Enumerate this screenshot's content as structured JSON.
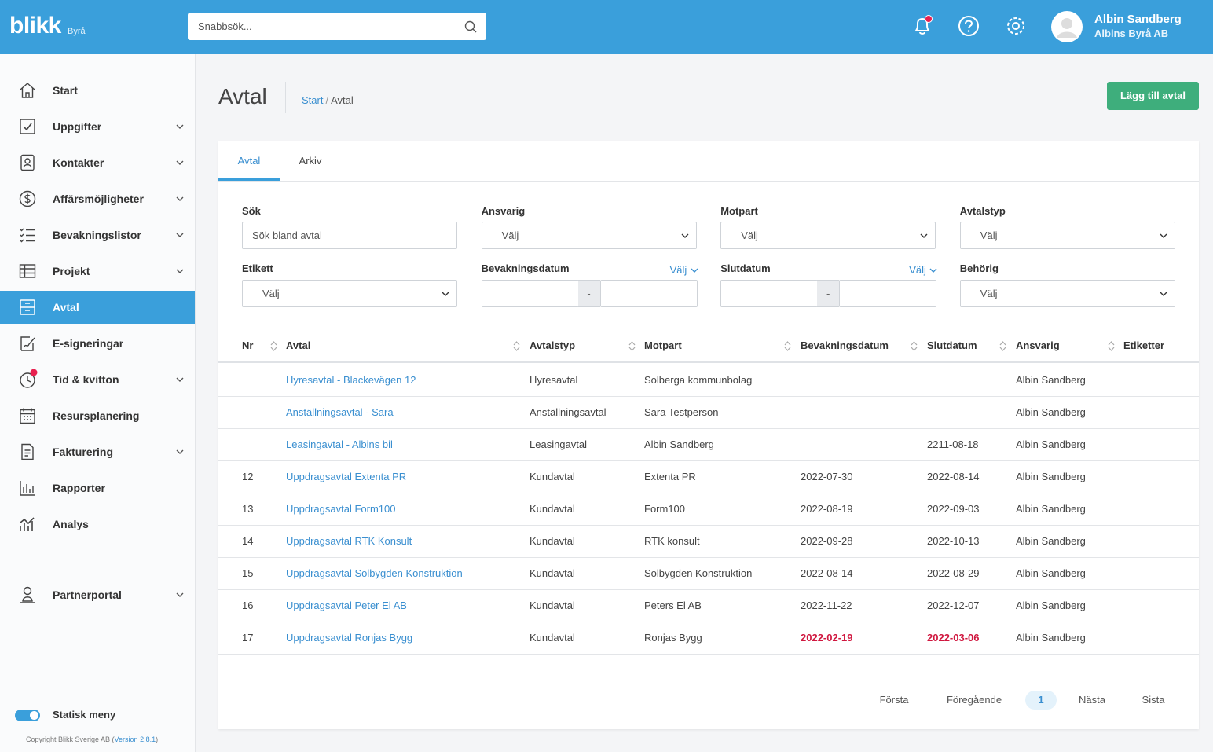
{
  "header": {
    "logo": "blikk",
    "logo_sub": "Byrå",
    "search_placeholder": "Snabbsök...",
    "user_name": "Albin Sandberg",
    "user_company": "Albins Byrå AB",
    "notification_badge": true
  },
  "sidebar": {
    "items": [
      {
        "label": "Start",
        "expandable": false
      },
      {
        "label": "Uppgifter",
        "expandable": true
      },
      {
        "label": "Kontakter",
        "expandable": true
      },
      {
        "label": "Affärsmöjligheter",
        "expandable": true
      },
      {
        "label": "Bevakningslistor",
        "expandable": true
      },
      {
        "label": "Projekt",
        "expandable": true
      },
      {
        "label": "Avtal",
        "expandable": false,
        "active": true
      },
      {
        "label": "E-signeringar",
        "expandable": false
      },
      {
        "label": "Tid & kvitton",
        "expandable": true,
        "badge": true
      },
      {
        "label": "Resursplanering",
        "expandable": false
      },
      {
        "label": "Fakturering",
        "expandable": true
      },
      {
        "label": "Rapporter",
        "expandable": false
      },
      {
        "label": "Analys",
        "expandable": false
      }
    ],
    "extra_items": [
      {
        "label": "Partnerportal",
        "expandable": true
      }
    ],
    "toggle_label": "Statisk meny",
    "toggle_on": true,
    "copyright": "Copyright Blikk Sverige AB (",
    "version": "Version 2.8.1",
    "copyright_end": ")"
  },
  "page": {
    "title": "Avtal",
    "breadcrumb": [
      "Start",
      "Avtal"
    ],
    "breadcrumb_separator": "/",
    "add_button": "Lägg till avtal"
  },
  "tabs": [
    {
      "label": "Avtal",
      "active": true
    },
    {
      "label": "Arkiv"
    }
  ],
  "filters": [
    {
      "label": "Sök",
      "kind": "text",
      "placeholder": "Sök bland avtal"
    },
    {
      "label": "Ansvarig",
      "kind": "select",
      "placeholder": "Välj"
    },
    {
      "label": "Motpart",
      "kind": "select",
      "placeholder": "Välj"
    },
    {
      "label": "Avtalstyp",
      "kind": "select",
      "placeholder": "Välj"
    },
    {
      "label": "Etikett",
      "kind": "select",
      "placeholder": "Välj"
    },
    {
      "label": "Bevakningsdatum",
      "kind": "range",
      "link": "Välj",
      "separator": "-"
    },
    {
      "label": "Slutdatum",
      "kind": "range",
      "link": "Välj",
      "separator": "-"
    },
    {
      "label": "Behörig",
      "kind": "select",
      "placeholder": "Välj"
    }
  ],
  "table": {
    "columns": [
      {
        "label": "Nr",
        "sortable": true
      },
      {
        "label": "Avtal",
        "sortable": true
      },
      {
        "label": "Avtalstyp",
        "sortable": true
      },
      {
        "label": "Motpart",
        "sortable": true
      },
      {
        "label": "Bevakningsdatum",
        "sortable": true
      },
      {
        "label": "Slutdatum",
        "sortable": true
      },
      {
        "label": "Ansvarig",
        "sortable": true
      },
      {
        "label": "Etiketter",
        "sortable": false
      }
    ],
    "rows": [
      {
        "cells": [
          null,
          "Hyresavtal - Blackevägen 12",
          "Hyresavtal",
          "Solberga kommunbolag",
          null,
          null,
          "Albin Sandberg",
          null
        ]
      },
      {
        "cells": [
          null,
          "Anställningsavtal - Sara",
          "Anställningsavtal",
          "Sara Testperson",
          null,
          null,
          "Albin Sandberg",
          null
        ]
      },
      {
        "cells": [
          null,
          "Leasingavtal - Albins bil",
          "Leasingavtal",
          "Albin Sandberg",
          null,
          "2211-08-18",
          "Albin Sandberg",
          null
        ]
      },
      {
        "cells": [
          12,
          "Uppdragsavtal Extenta PR",
          "Kundavtal",
          "Extenta PR",
          "2022-07-30",
          "2022-08-14",
          "Albin Sandberg",
          null
        ]
      },
      {
        "cells": [
          13,
          "Uppdragsavtal Form100",
          "Kundavtal",
          "Form100",
          "2022-08-19",
          "2022-09-03",
          "Albin Sandberg",
          null
        ]
      },
      {
        "cells": [
          14,
          "Uppdragsavtal RTK Konsult",
          "Kundavtal",
          "RTK konsult",
          "2022-09-28",
          "2022-10-13",
          "Albin Sandberg",
          null
        ]
      },
      {
        "cells": [
          15,
          "Uppdragsavtal Solbygden Konstruktion",
          "Kundavtal",
          "Solbygden Konstruktion",
          "2022-08-14",
          "2022-08-29",
          "Albin Sandberg",
          null
        ]
      },
      {
        "cells": [
          16,
          "Uppdragsavtal Peter El AB",
          "Kundavtal",
          "Peters El AB",
          "2022-11-22",
          "2022-12-07",
          "Albin Sandberg",
          null
        ]
      },
      {
        "cells": [
          17,
          "Uppdragsavtal Ronjas Bygg",
          "Kundavtal",
          "Ronjas Bygg",
          "2022-02-19",
          "2022-03-06",
          "Albin Sandberg",
          null
        ],
        "overdue": true
      }
    ]
  },
  "pagination": {
    "first": "Första",
    "previous": "Föregående",
    "pages": [
      {
        "number": 1,
        "active": true
      }
    ],
    "next": "Nästa",
    "last": "Sista"
  }
}
